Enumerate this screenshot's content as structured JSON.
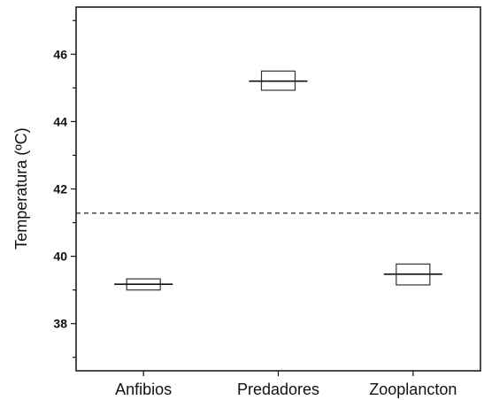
{
  "chart_data": {
    "type": "box",
    "ylabel": "Temperatura (ºC)",
    "xlabel": "",
    "title": "",
    "ylim": [
      36.6,
      47.4
    ],
    "yticks": [
      38,
      40,
      42,
      44,
      46
    ],
    "categories": [
      "Anfibios",
      "Predadores",
      "Zooplancton"
    ],
    "boxes": [
      {
        "category": "Anfibios",
        "q1": 39.0,
        "median": 39.17,
        "q3": 39.33
      },
      {
        "category": "Predadores",
        "q1": 44.93,
        "median": 45.2,
        "q3": 45.5
      },
      {
        "category": "Zooplancton",
        "q1": 39.15,
        "median": 39.47,
        "q3": 39.77
      }
    ],
    "reference_line": {
      "y": 41.28,
      "style": "dashed"
    },
    "grid": false,
    "legend": "none",
    "colors": {
      "box_stroke": "#333333",
      "axis": "#111111"
    }
  }
}
